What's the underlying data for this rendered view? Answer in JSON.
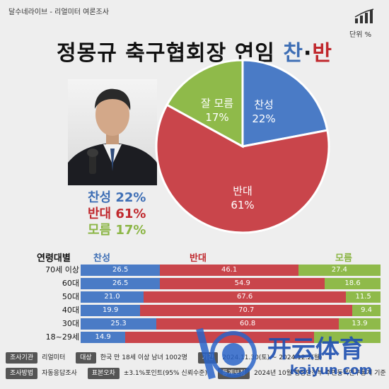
{
  "header": {
    "source_line": "달수네라이브 - 리얼미터 여론조사",
    "unit": "단위 %",
    "unit_icon": "bar-chart-icon"
  },
  "title": {
    "main": "정몽규 축구협회장 연임",
    "pro_word": "찬",
    "separator": "·",
    "con_word": "반"
  },
  "summary": {
    "pro": "찬성 22%",
    "con": "반대 61%",
    "unknown": "모름 17%"
  },
  "chart_data": [
    {
      "type": "pie",
      "slices": [
        {
          "label": "찬성",
          "value": 22,
          "value_label": "22%",
          "color": "#4a7bc6"
        },
        {
          "label": "반대",
          "value": 61,
          "value_label": "61%",
          "color": "#c9454b"
        },
        {
          "label": "잘 모름",
          "value": 17,
          "value_label": "17%",
          "color": "#8fba4a"
        }
      ]
    },
    {
      "type": "bar",
      "stacked": "horizontal-100",
      "group_header": "연령대별",
      "series": [
        {
          "name": "찬성",
          "color": "#4a7bc6"
        },
        {
          "name": "반대",
          "color": "#c9454b"
        },
        {
          "name": "모름",
          "color": "#8fba4a"
        }
      ],
      "rows": [
        {
          "label": "70세 이상",
          "values": [
            26.5,
            46.1,
            27.4
          ],
          "value_labels": [
            "26.5",
            "46.1",
            "27.4"
          ]
        },
        {
          "label": "60대",
          "values": [
            26.5,
            54.9,
            18.6
          ],
          "value_labels": [
            "26.5",
            "54.9",
            "18.6"
          ]
        },
        {
          "label": "50대",
          "values": [
            21.0,
            67.6,
            11.5
          ],
          "value_labels": [
            "21.0",
            "67.6",
            "11.5"
          ]
        },
        {
          "label": "40대",
          "values": [
            19.9,
            70.7,
            9.4
          ],
          "value_labels": [
            "19.9",
            "70.7",
            "9.4"
          ]
        },
        {
          "label": "30대",
          "values": [
            25.3,
            60.8,
            13.9
          ],
          "value_labels": [
            "25.3",
            "60.8",
            "13.9"
          ]
        },
        {
          "label": "18~29세",
          "values": [
            14.9,
            63.0,
            22.1
          ],
          "value_labels": [
            "14.9",
            "",
            ""
          ]
        }
      ]
    }
  ],
  "footer": {
    "row1": [
      {
        "tag": "조사기관",
        "value": "리얼미터"
      },
      {
        "tag": "대상",
        "value": "한국 만 18세 이상 남녀 1002명"
      },
      {
        "tag": "기간",
        "value": "2024.11.30(토) ~ 2024.12.2(월)"
      }
    ],
    "row2": [
      {
        "tag": "조사방법",
        "value": "자동응답조사"
      },
      {
        "tag": "표본오차",
        "value": "±3.1%포인트(95% 신뢰수준)"
      },
      {
        "tag": "통계보정",
        "value": "2024년 10월 행정안전부 주민등록인구통계 기준"
      }
    ]
  },
  "watermark": {
    "brand": "开云体育",
    "url": "kaiyun.com"
  }
}
